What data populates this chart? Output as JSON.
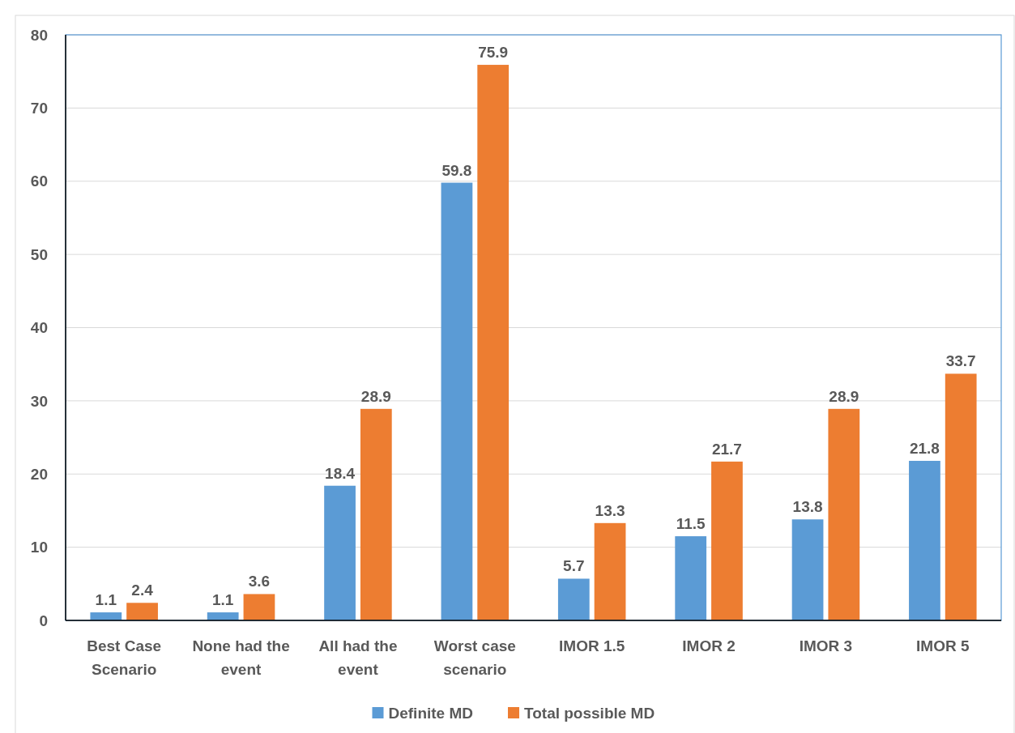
{
  "chart_data": {
    "type": "bar",
    "categories": [
      "Best Case Scenario",
      "None had the event",
      "All had the event",
      "Worst case scenario",
      "IMOR 1.5",
      "IMOR 2",
      "IMOR 3",
      "IMOR 5"
    ],
    "series": [
      {
        "name": "Definite MD",
        "color": "#5b9bd5",
        "values": [
          1.1,
          1.1,
          18.4,
          59.8,
          5.7,
          11.5,
          13.8,
          21.8
        ]
      },
      {
        "name": "Total possible MD",
        "color": "#ed7d31",
        "values": [
          2.4,
          3.6,
          28.9,
          75.9,
          13.3,
          21.7,
          28.9,
          33.7
        ]
      }
    ],
    "ylim": [
      0,
      80
    ],
    "yticks": [
      0,
      10,
      20,
      30,
      40,
      50,
      60,
      70,
      80
    ],
    "grid": "y",
    "legend": "bottom",
    "data_labels": true
  }
}
